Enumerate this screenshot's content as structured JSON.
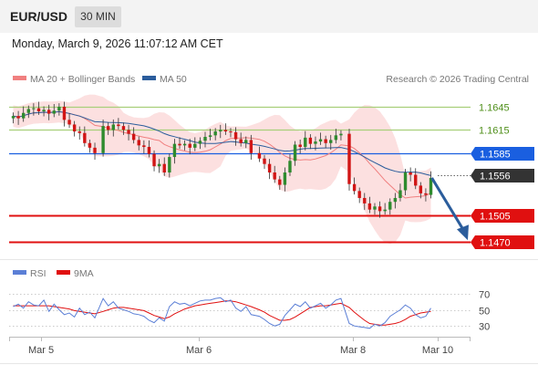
{
  "header": {
    "symbol": "EUR/USD",
    "timeframe": "30 MIN"
  },
  "timestamp": "Monday, March 9, 2026 11:07:12 AM CET",
  "legend_main": [
    {
      "label": "MA 20 + Bollinger Bands",
      "color": "#f08080"
    },
    {
      "label": "MA 50",
      "color": "#2b5d9c"
    }
  ],
  "copyright": "Research © 2026 Trading Central",
  "legend_rsi": [
    {
      "label": "RSI",
      "color": "#5b7fd6"
    },
    {
      "label": "9MA",
      "color": "#e01010"
    }
  ],
  "colors": {
    "bull": "#2e8b2e",
    "bear": "#d11515",
    "ma20": "#f08080",
    "ma50": "#2b5d9c",
    "bands": "#fbd5d5",
    "resistance": "#a8cf7a",
    "resistance_text": "#4f8f1a",
    "pivot": "#1a5fe0",
    "support": "#e01010",
    "current": "#333333",
    "arrow": "#2b5d9c"
  },
  "chart_data": [
    {
      "type": "candlestick",
      "instrument": "EUR/USD",
      "interval": "30 MIN",
      "x_ticks": [
        "Mar 5",
        "Mar 6",
        "Mar 8",
        "Mar 10"
      ],
      "ylim": [
        1.1455,
        1.1665
      ],
      "levels": [
        {
          "value": 1.1645,
          "label": "1.1645",
          "kind": "resistance"
        },
        {
          "value": 1.1615,
          "label": "1.1615",
          "kind": "resistance"
        },
        {
          "value": 1.1585,
          "label": "1.1585",
          "kind": "pivot"
        },
        {
          "value": 1.1556,
          "label": "1.1556",
          "kind": "current"
        },
        {
          "value": 1.1505,
          "label": "1.1505",
          "kind": "support"
        },
        {
          "value": 1.147,
          "label": "1.1470",
          "kind": "support"
        }
      ],
      "projection": {
        "from": 1.1553,
        "to": 1.147,
        "direction": "down"
      },
      "close_path": [
        1.1633,
        1.163,
        1.1637,
        1.1642,
        1.1643,
        1.1639,
        1.1641,
        1.1636,
        1.164,
        1.1645,
        1.1628,
        1.1622,
        1.1613,
        1.1611,
        1.1598,
        1.1592,
        1.1585,
        1.162,
        1.1615,
        1.1622,
        1.162,
        1.1615,
        1.161,
        1.1602,
        1.1595,
        1.1593,
        1.1584,
        1.1568,
        1.1571,
        1.156,
        1.158,
        1.1597,
        1.1595,
        1.1597,
        1.1592,
        1.1597,
        1.1601,
        1.1606,
        1.1608,
        1.1613,
        1.1615,
        1.1613,
        1.1612,
        1.1603,
        1.1598,
        1.1602,
        1.1585,
        1.1578,
        1.1571,
        1.156,
        1.1551,
        1.1544,
        1.156,
        1.1575,
        1.1596,
        1.1593,
        1.1605,
        1.1597,
        1.16,
        1.1603,
        1.1598,
        1.1602,
        1.1608,
        1.161,
        1.1545,
        1.1536,
        1.1527,
        1.152,
        1.1512,
        1.1516,
        1.151,
        1.1512,
        1.1522,
        1.1527,
        1.1537,
        1.156,
        1.1557,
        1.1543,
        1.1533,
        1.1531,
        1.1553
      ]
    },
    {
      "type": "line",
      "title": "RSI",
      "ylim": [
        20,
        80
      ],
      "y_ticks": [
        70,
        50,
        30
      ],
      "series": [
        {
          "name": "RSI",
          "values": [
            54,
            57,
            52,
            60,
            56,
            55,
            62,
            48,
            57,
            50,
            44,
            46,
            41,
            52,
            44,
            47,
            40,
            64,
            55,
            60,
            52,
            50,
            48,
            45,
            44,
            42,
            37,
            34,
            40,
            36,
            54,
            60,
            57,
            58,
            55,
            58,
            61,
            62,
            62,
            64,
            65,
            60,
            62,
            52,
            48,
            54,
            44,
            42,
            38,
            33,
            30,
            32,
            43,
            50,
            57,
            54,
            60,
            52,
            55,
            58,
            52,
            56,
            62,
            64,
            33,
            30,
            29,
            28,
            27,
            32,
            30,
            34,
            42,
            46,
            50,
            56,
            52,
            44,
            40,
            42,
            52
          ]
        },
        {
          "name": "9MA",
          "values": [
            55,
            55,
            55,
            55,
            55,
            55,
            55,
            55,
            54,
            53,
            52,
            51,
            49,
            48,
            47,
            46,
            45,
            48,
            50,
            52,
            53,
            53,
            52,
            51,
            50,
            49,
            46,
            43,
            41,
            39,
            41,
            45,
            48,
            51,
            53,
            55,
            56,
            57,
            58,
            59,
            60,
            61,
            61,
            60,
            58,
            56,
            54,
            50,
            47,
            43,
            40,
            37,
            37,
            38,
            41,
            45,
            49,
            53,
            54,
            55,
            55,
            56,
            57,
            58,
            53,
            47,
            42,
            37,
            33,
            32,
            31,
            31,
            32,
            33,
            35,
            38,
            42,
            44,
            46,
            47,
            48
          ]
        }
      ]
    }
  ]
}
